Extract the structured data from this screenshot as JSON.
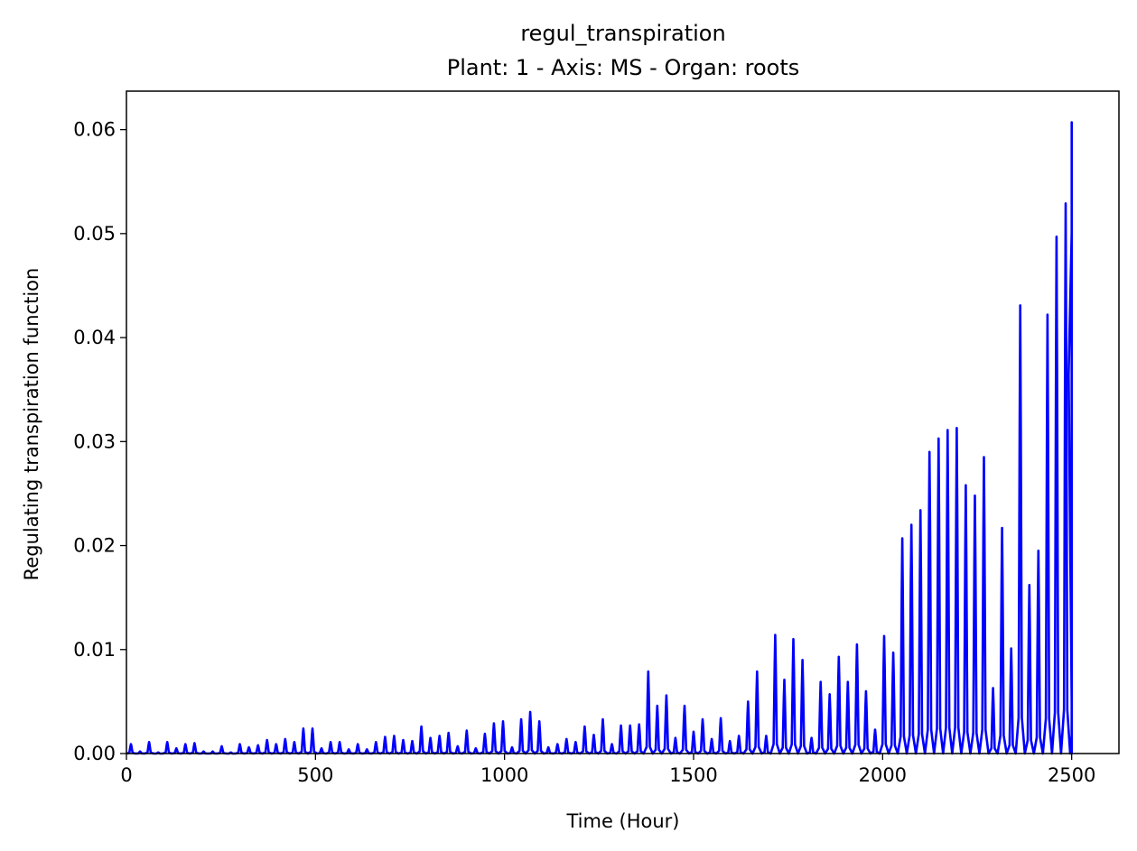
{
  "chart_data": {
    "type": "line",
    "title": "regul_transpiration",
    "subtitle": "Plant: 1 - Axis: MS - Organ: roots",
    "xlabel": "Time (Hour)",
    "ylabel": "Regulating transpiration function",
    "xlim": [
      0,
      2625
    ],
    "ylim": [
      0,
      0.0637
    ],
    "xticks": [
      0,
      500,
      1000,
      1500,
      2000,
      2500
    ],
    "xtick_labels": [
      "0",
      "500",
      "1000",
      "1500",
      "2000",
      "2500"
    ],
    "yticks": [
      0,
      0.01,
      0.02,
      0.03,
      0.04,
      0.05,
      0.06
    ],
    "ytick_labels": [
      "0.00",
      "0.01",
      "0.02",
      "0.03",
      "0.04",
      "0.05",
      "0.06"
    ],
    "grid": false,
    "legend": "none",
    "series": [
      {
        "color": "#0000ff",
        "note_daily_peaks": "daily cycle, one peak per ~24 h; peak_values list the approximate daily maxima",
        "x_start": 0,
        "x_end": 2500,
        "peak_spacing": 24,
        "peak_values": [
          0.0009,
          0.0002,
          0.0011,
          0.0001,
          0.0011,
          0.0005,
          0.0009,
          0.001,
          0.0002,
          0.0002,
          0.0007,
          0.0001,
          0.0009,
          0.0006,
          0.0008,
          0.0013,
          0.0009,
          0.0014,
          0.0011,
          0.0024,
          0.0024,
          0.0005,
          0.0011,
          0.0011,
          0.0004,
          0.0009,
          0.0004,
          0.0011,
          0.0016,
          0.0017,
          0.0013,
          0.0012,
          0.0026,
          0.0015,
          0.0017,
          0.002,
          0.0007,
          0.0022,
          0.0005,
          0.0019,
          0.0029,
          0.0031,
          0.0006,
          0.0033,
          0.004,
          0.0031,
          0.0006,
          0.0009,
          0.0014,
          0.0011,
          0.0026,
          0.0018,
          0.0033,
          0.0009,
          0.0027,
          0.0027,
          0.0028,
          0.0079,
          0.0046,
          0.0056,
          0.0015,
          0.0046,
          0.0021,
          0.0033,
          0.0014,
          0.0034,
          0.0012,
          0.0017,
          0.005,
          0.0079,
          0.0017,
          0.0114,
          0.0071,
          0.011,
          0.009,
          0.0015,
          0.0069,
          0.0057,
          0.0093,
          0.0069,
          0.0105,
          0.006,
          0.0023,
          0.0113,
          0.0097,
          0.0207,
          0.022,
          0.0234,
          0.029,
          0.0303,
          0.0311,
          0.0313,
          0.0258,
          0.0248,
          0.0285,
          0.0063,
          0.0217,
          0.0101,
          0.0431,
          0.0162,
          0.0195,
          0.0422,
          0.0497,
          0.0529,
          0.0224,
          0.0607
        ],
        "end_value": 0.0501
      }
    ]
  }
}
